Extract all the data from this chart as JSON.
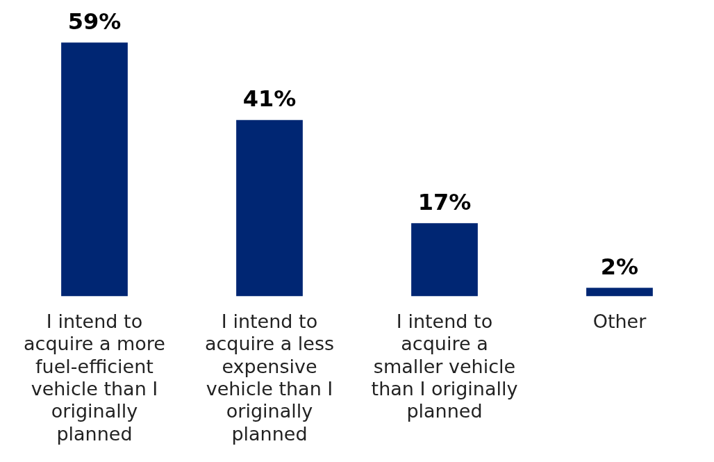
{
  "chart_data": {
    "type": "bar",
    "categories": [
      "I intend to acquire a more fuel-efficient vehicle than I originally planned",
      "I intend to acquire a less expensive vehicle than I originally planned",
      "I intend to acquire a smaller vehicle than I originally planned",
      "Other"
    ],
    "values": [
      59,
      41,
      17,
      2
    ],
    "value_labels": [
      "59%",
      "41%",
      "17%",
      "2%"
    ],
    "color": "#002673",
    "grid": false,
    "legend": false
  }
}
